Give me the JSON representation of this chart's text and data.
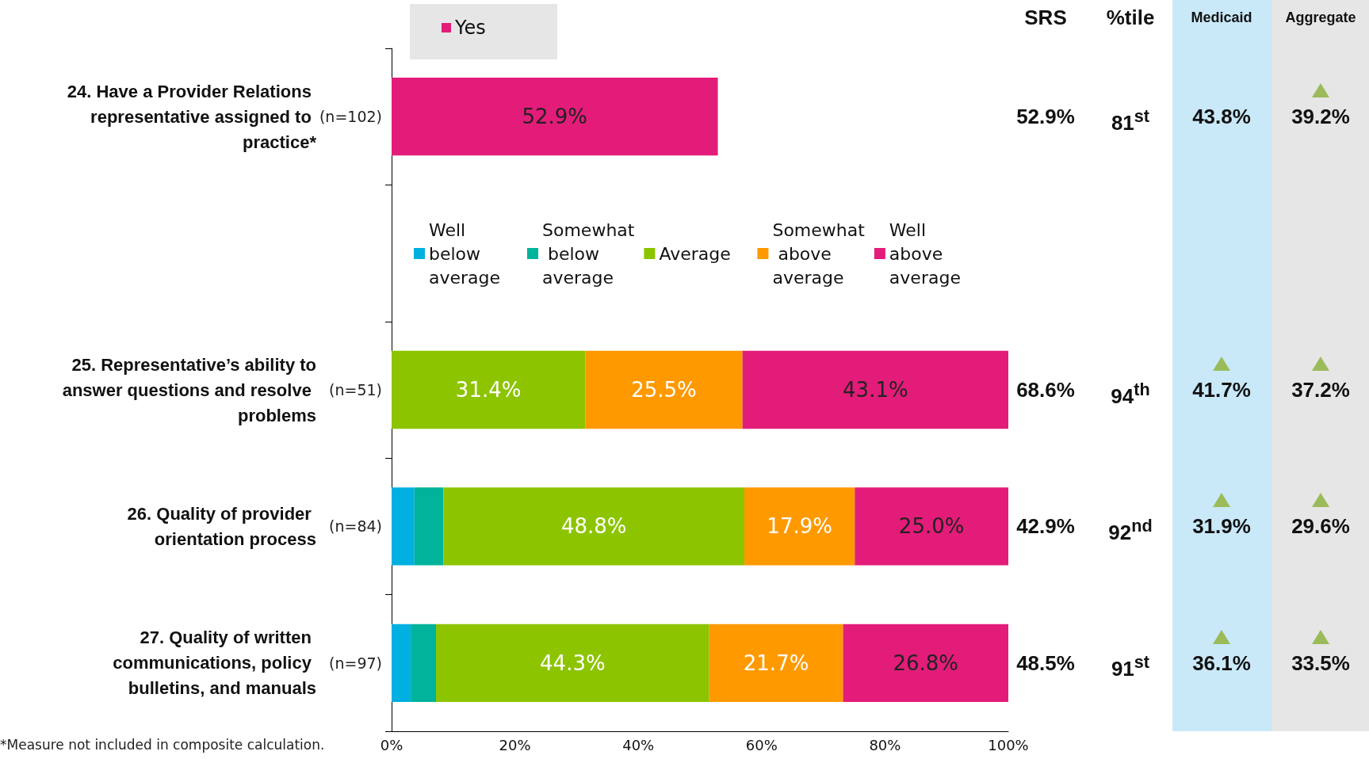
{
  "chart_data": [
    {
      "type": "bar",
      "orientation": "horizontal",
      "stacked": true,
      "categories": [
        "24. Have a Provider Relations representative assigned to practice*",
        null,
        "25. Representative’s ability to answer questions and resolve problems",
        "26. Quality of provider orientation process",
        "27. Quality of written communications, policy bulletins, and manuals"
      ],
      "series": [
        {
          "name": "Yes",
          "color": "#e31c79",
          "values": [
            52.9,
            null,
            null,
            null,
            null
          ],
          "value_labels": [
            "52.9%",
            null,
            null,
            null,
            null
          ]
        },
        {
          "name": "Well below average",
          "color": "#00b0e0",
          "values": [
            null,
            null,
            0,
            3.7,
            3.1
          ],
          "value_labels": [
            null,
            null,
            null,
            null,
            null
          ]
        },
        {
          "name": "Somewhat below average",
          "color": "#00b39a",
          "values": [
            null,
            null,
            0,
            4.7,
            4.1
          ],
          "value_labels": [
            null,
            null,
            null,
            null,
            null
          ]
        },
        {
          "name": "Average",
          "color": "#8cc400",
          "values": [
            null,
            null,
            31.4,
            48.8,
            44.3
          ],
          "value_labels": [
            null,
            null,
            "31.4%",
            "48.8%",
            "44.3%"
          ]
        },
        {
          "name": "Somewhat above average",
          "color": "#ff9900",
          "values": [
            null,
            null,
            25.5,
            17.9,
            21.7
          ],
          "value_labels": [
            null,
            null,
            "25.5%",
            "17.9%",
            "21.7%"
          ]
        },
        {
          "name": "Well above average",
          "color": "#e31c79",
          "values": [
            null,
            null,
            43.1,
            25.0,
            26.8
          ],
          "value_labels": [
            null,
            null,
            "43.1%",
            "25.0%",
            "26.8%"
          ]
        }
      ],
      "xlim": [
        0,
        100
      ],
      "xticks": [
        {
          "value": 0,
          "label": "0%"
        },
        {
          "value": 20,
          "label": "20%"
        },
        {
          "value": 40,
          "label": "40%"
        },
        {
          "value": 60,
          "label": "60%"
        },
        {
          "value": 80,
          "label": "80%"
        },
        {
          "value": 100,
          "label": "100%"
        }
      ],
      "grid": false,
      "legend": "top",
      "annotations": [
        "(n=102)",
        "(n=51)",
        "(n=84)",
        "(n=97)",
        "*Measure not included in composite calculation."
      ]
    },
    {
      "type": "other",
      "annotations": [
        "SRS",
        "%tile",
        "Medicaid",
        "Aggregate",
        "52.9%",
        "81$^{st}$",
        "43.8%",
        "39.2%",
        "68.6%",
        "94$^{th}$",
        "41.7%",
        "37.2%",
        "42.9%",
        "92$^{nd}$",
        "31.9%",
        "29.6%",
        "48.5%",
        "91$^{st}$",
        "36.1%",
        "33.5%"
      ]
    }
  ]
}
